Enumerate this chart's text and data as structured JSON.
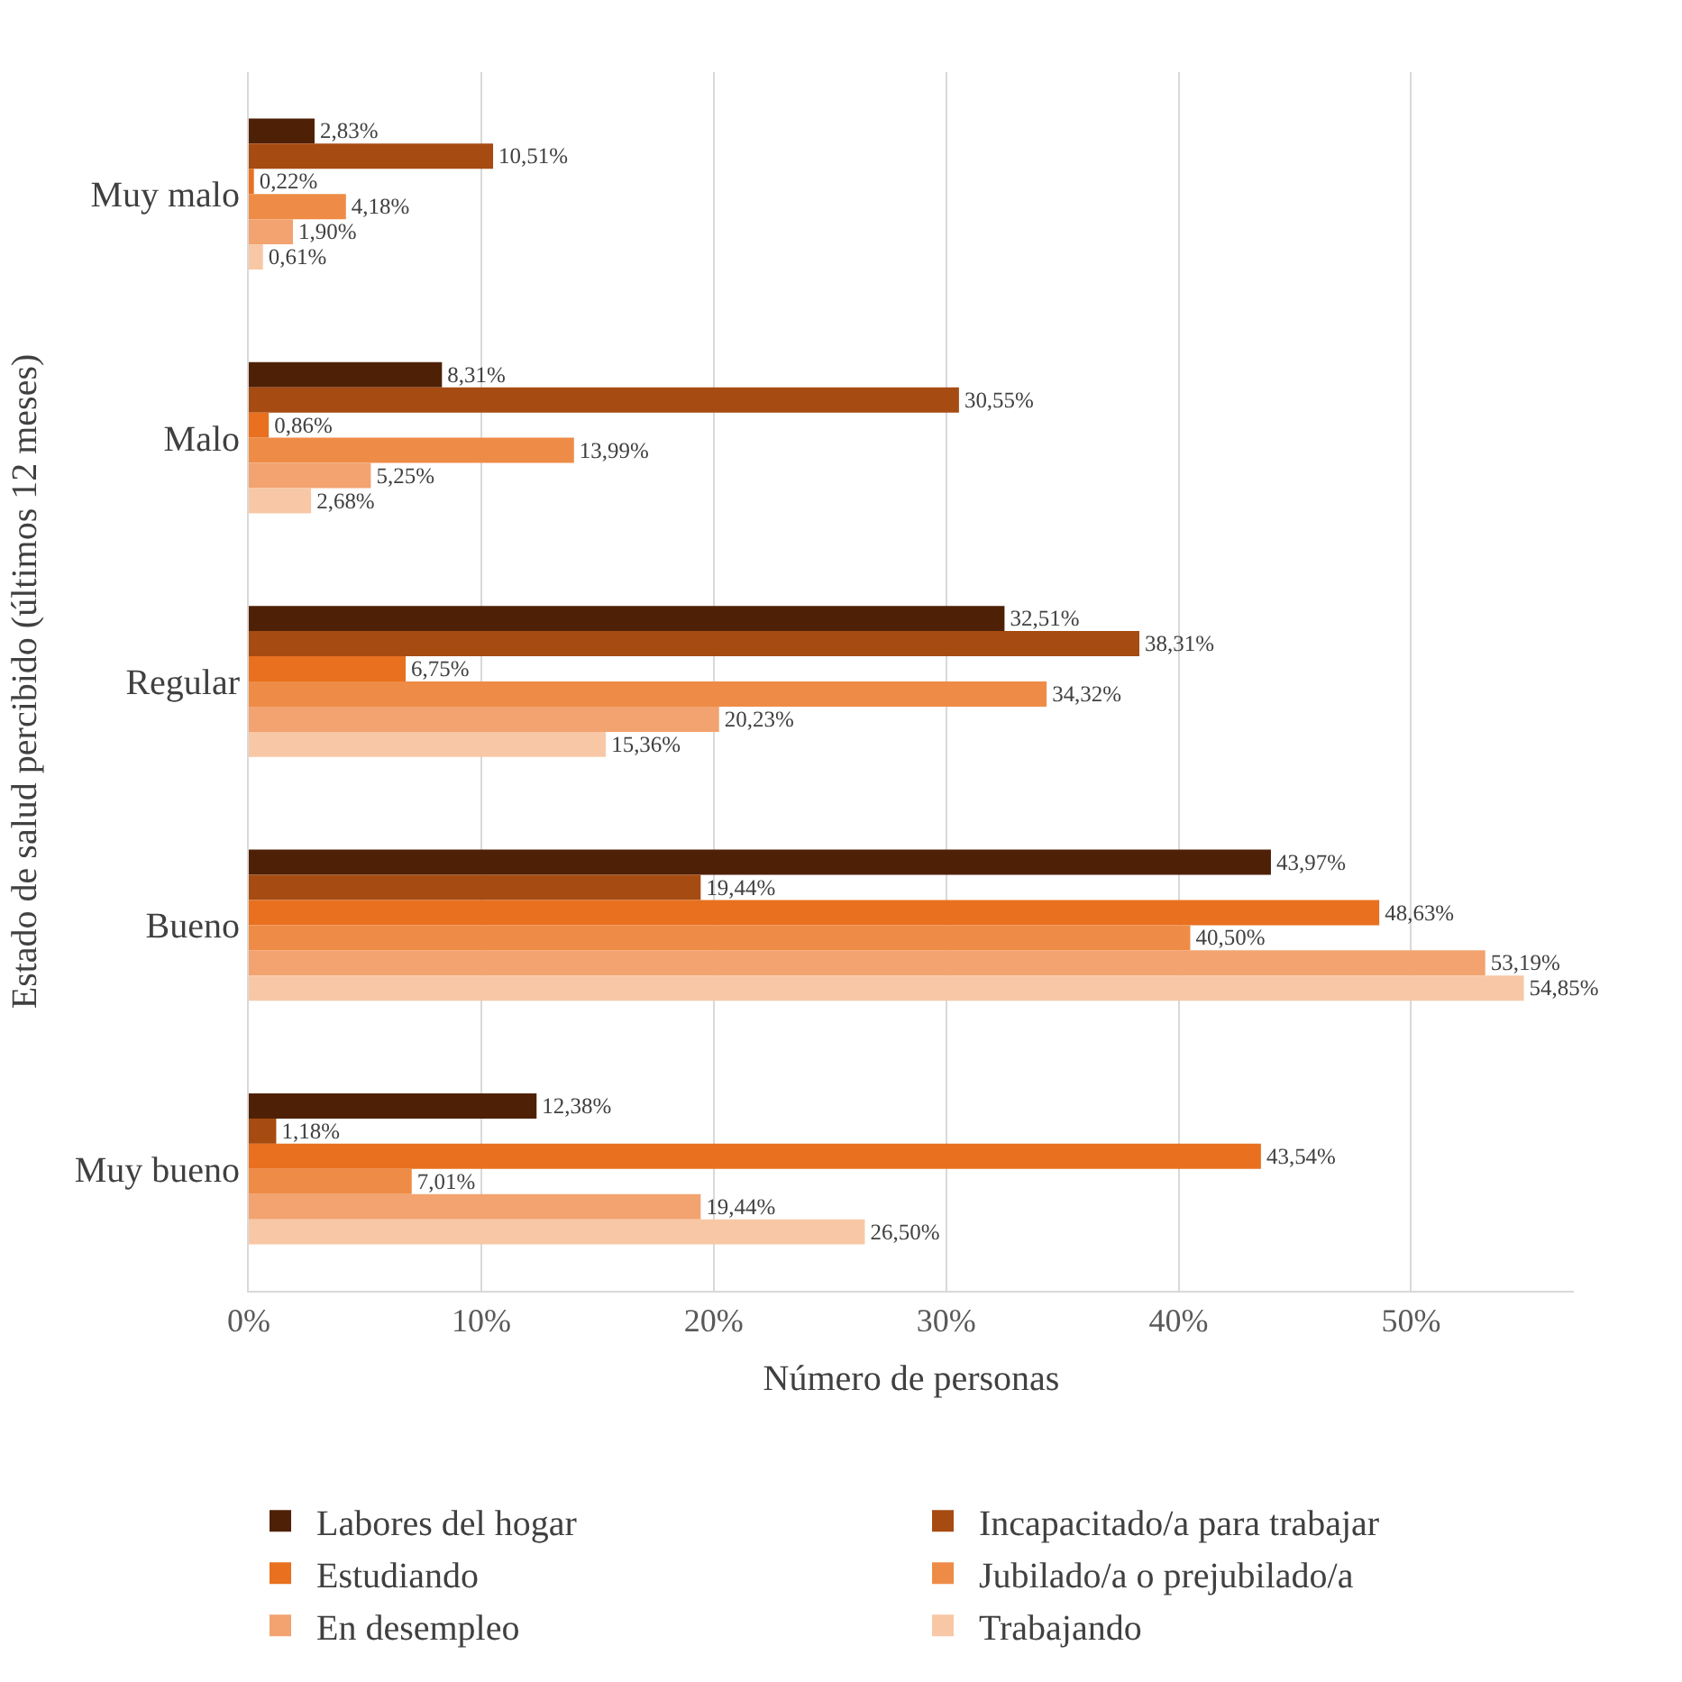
{
  "chart_data": {
    "type": "bar",
    "orientation": "horizontal",
    "xlabel": "Número de personas",
    "ylabel": "Estado de salud percibido (últimos 12 meses)",
    "categories": [
      "Muy malo",
      "Malo",
      "Regular",
      "Bueno",
      "Muy bueno"
    ],
    "series": [
      {
        "name": "Labores del hogar",
        "color": "#4e2106",
        "values": [
          2.83,
          8.31,
          32.51,
          43.97,
          12.38
        ],
        "value_labels": [
          "2,83%",
          "8,31%",
          "32,51%",
          "43,97%",
          "12,38%"
        ]
      },
      {
        "name": "Incapacitado/a para trabajar",
        "color": "#a64b12",
        "values": [
          10.51,
          30.55,
          38.31,
          19.44,
          1.18
        ],
        "value_labels": [
          "10,51%",
          "30,55%",
          "38,31%",
          "19,44%",
          "1,18%"
        ]
      },
      {
        "name": "Estudiando",
        "color": "#e8701f",
        "values": [
          0.22,
          0.86,
          6.75,
          48.63,
          43.54
        ],
        "value_labels": [
          "0,22%",
          "0,86%",
          "6,75%",
          "48,63%",
          "43,54%"
        ]
      },
      {
        "name": "Jubilado/a o prejubilado/a",
        "color": "#ee8c47",
        "values": [
          4.18,
          13.99,
          34.32,
          40.5,
          7.01
        ],
        "value_labels": [
          "4,18%",
          "13,99%",
          "34,32%",
          "40,50%",
          "7,01%"
        ]
      },
      {
        "name": "En desempleo",
        "color": "#f2a36f",
        "values": [
          1.9,
          5.25,
          20.23,
          53.19,
          19.44
        ],
        "value_labels": [
          "1,90%",
          "5,25%",
          "20,23%",
          "53,19%",
          "19,44%"
        ]
      },
      {
        "name": "Trabajando",
        "color": "#f8c8a6",
        "values": [
          0.61,
          2.68,
          15.36,
          54.85,
          26.5
        ],
        "value_labels": [
          "0,61%",
          "2,68%",
          "15,36%",
          "54,85%",
          "26,50%"
        ]
      }
    ],
    "xlim": [
      0,
      57
    ],
    "xticks": [
      {
        "value": 0,
        "label": "0%"
      },
      {
        "value": 10,
        "label": "10%"
      },
      {
        "value": 20,
        "label": "20%"
      },
      {
        "value": 30,
        "label": "30%"
      },
      {
        "value": 40,
        "label": "40%"
      },
      {
        "value": 50,
        "label": "50%"
      }
    ],
    "grid": "x",
    "legend": "bottom"
  }
}
